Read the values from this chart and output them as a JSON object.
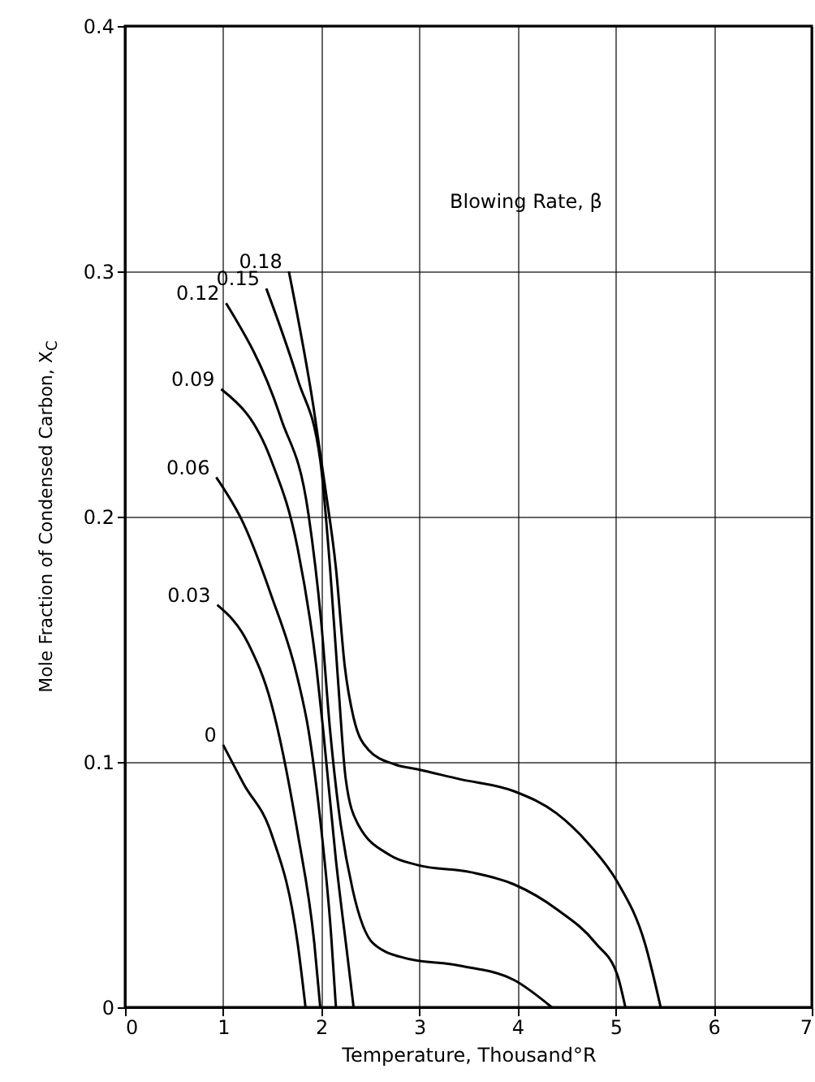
{
  "chart_data": {
    "type": "line",
    "xlabel": "Temperature, Thousand°R",
    "ylabel": "Mole Fraction of Condensed Carbon, X$_{C}$",
    "legend_title": "Blowing Rate, β",
    "xlim": [
      0,
      7
    ],
    "ylim": [
      0,
      0.4
    ],
    "xticks": [
      0,
      1,
      2,
      3,
      4,
      5,
      6,
      7
    ],
    "yticks": [
      0,
      0.1,
      0.2,
      0.3,
      0.4
    ],
    "grid": true,
    "legend": false,
    "line_style": "solid",
    "marker": "none",
    "series": [
      {
        "name": "0",
        "color": "#000000",
        "x": [
          1.0,
          1.21,
          1.49,
          1.76,
          1.84
        ],
        "values": [
          0.107,
          0.091,
          0.071,
          0.026,
          0
        ]
      },
      {
        "name": "0.03",
        "color": "#000000",
        "x": [
          0.94,
          1.26,
          1.49,
          1.76,
          1.93,
          1.99
        ],
        "values": [
          0.164,
          0.148,
          0.124,
          0.071,
          0.026,
          0
        ]
      },
      {
        "name": "0.06",
        "color": "#000000",
        "x": [
          0.93,
          1.21,
          1.49,
          1.76,
          1.87,
          1.98,
          2.1,
          2.15
        ],
        "values": [
          0.216,
          0.197,
          0.168,
          0.134,
          0.113,
          0.08,
          0.03,
          0
        ]
      },
      {
        "name": "0.09",
        "color": "#000000",
        "x": [
          0.98,
          1.49,
          1.76,
          1.95,
          2.02,
          2.15,
          2.27,
          2.33
        ],
        "values": [
          0.252,
          0.223,
          0.187,
          0.139,
          0.113,
          0.06,
          0.02,
          0
        ]
      },
      {
        "name": "0.12",
        "color": "#000000",
        "x": [
          1.03,
          1.59,
          1.87,
          2.0,
          2.09,
          2.18,
          2.32,
          2.53,
          2.86,
          3.41,
          3.97,
          4.35
        ],
        "values": [
          0.287,
          0.24,
          0.201,
          0.157,
          0.113,
          0.08,
          0.048,
          0.026,
          0.02,
          0.017,
          0.011,
          0
        ]
      },
      {
        "name": "0.15",
        "color": "#000000",
        "x": [
          1.44,
          1.76,
          1.99,
          2.09,
          2.17,
          2.25,
          2.37,
          2.7,
          2.98,
          3.53,
          3.97,
          4.4,
          4.8,
          5.02,
          5.1
        ],
        "values": [
          0.293,
          0.256,
          0.223,
          0.179,
          0.134,
          0.093,
          0.075,
          0.062,
          0.058,
          0.055,
          0.05,
          0.04,
          0.026,
          0.013,
          0
        ]
      },
      {
        "name": "0.18",
        "color": "#000000",
        "x": [
          1.67,
          1.92,
          2.04,
          2.15,
          2.24,
          2.33,
          2.48,
          2.75,
          2.98,
          3.41,
          3.97,
          4.4,
          4.74,
          5.02,
          5.3,
          5.46
        ],
        "values": [
          0.3,
          0.245,
          0.212,
          0.179,
          0.139,
          0.118,
          0.105,
          0.099,
          0.097,
          0.093,
          0.088,
          0.079,
          0.066,
          0.051,
          0.026,
          0
        ]
      }
    ]
  }
}
